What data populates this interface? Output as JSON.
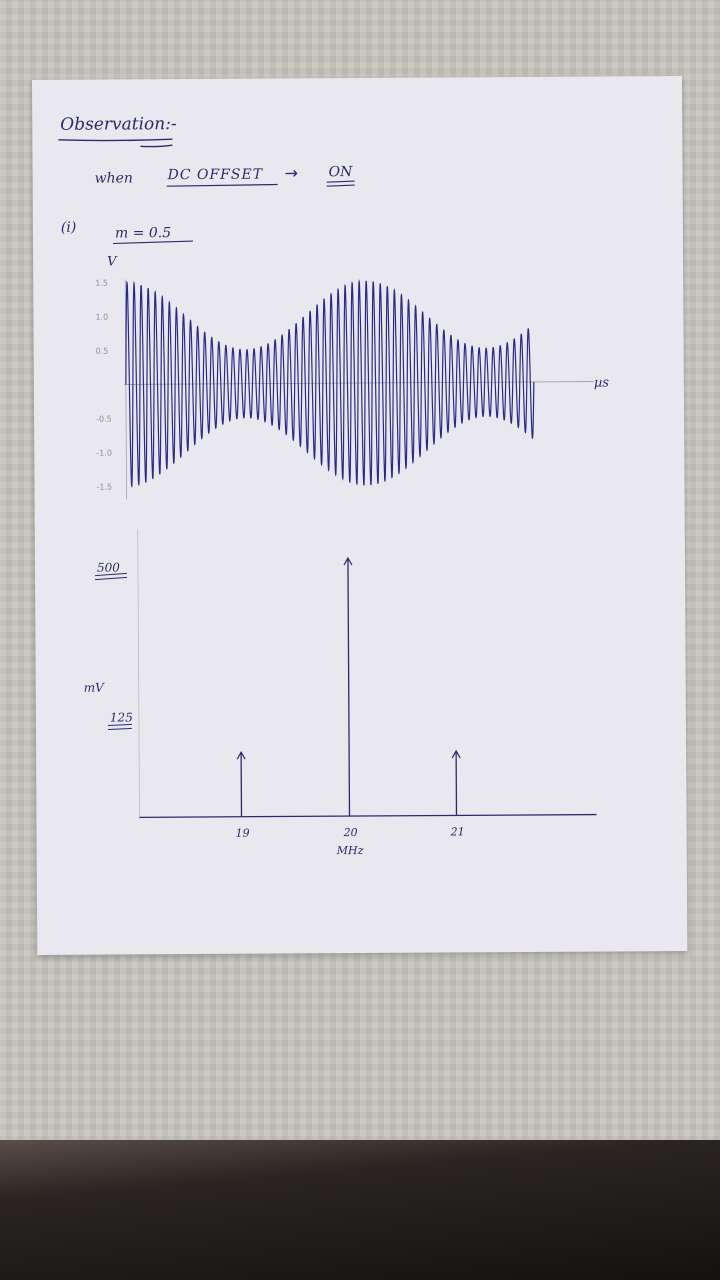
{
  "heading": "Observation:-",
  "condition": {
    "prefix": "when",
    "label": "DC OFFSET",
    "arrow": "→",
    "value": "ON"
  },
  "case": {
    "number": "(i)",
    "modulation": "m = 0.5"
  },
  "waveform_plot": {
    "y_unit": "V",
    "x_unit": "µs",
    "y_ticks": [
      "1.5",
      "1.0",
      "0.5",
      "-0.5",
      "-1.0",
      "-1.5"
    ]
  },
  "spectrum_plot": {
    "y_unit": "mV",
    "x_unit": "MHz",
    "y_label_top": "500",
    "y_label_low": "125"
  },
  "chart_data": [
    {
      "type": "line",
      "title": "",
      "xlabel": "µs",
      "ylabel": "V",
      "y_ticks": [
        1.5,
        1.0,
        0.5,
        -0.5,
        -1.0,
        -1.5
      ],
      "ylim": [
        -1.5,
        1.5
      ],
      "signal": "AM waveform",
      "modulation_index": 0.5,
      "envelope_max": 1.5,
      "envelope_min": 0.5,
      "grid": false
    },
    {
      "type": "bar",
      "title": "",
      "xlabel": "MHz",
      "ylabel": "mV",
      "categories": [
        "19",
        "20",
        "21"
      ],
      "values": [
        125,
        500,
        125
      ],
      "ylim": [
        0,
        500
      ],
      "grid": false
    }
  ]
}
